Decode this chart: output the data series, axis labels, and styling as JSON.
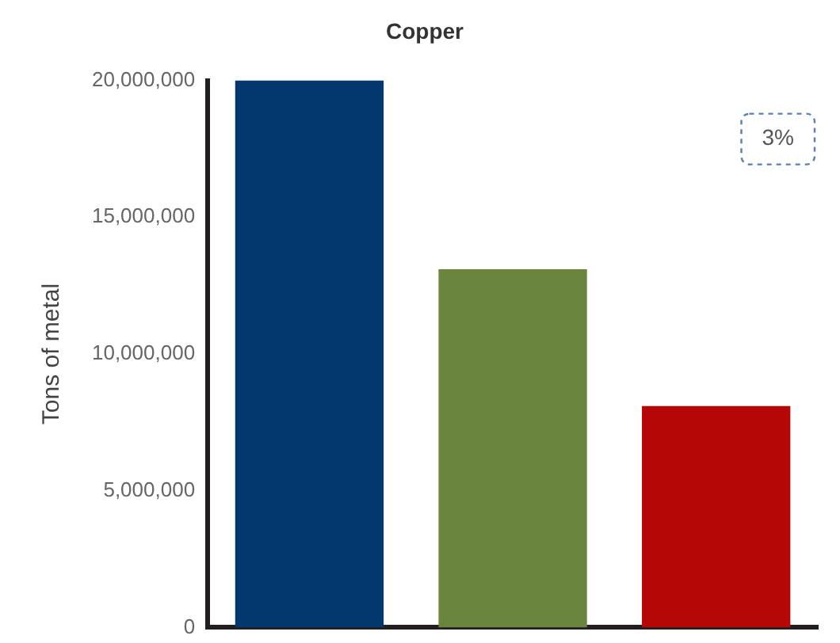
{
  "chart_data": {
    "type": "bar",
    "title": "Copper",
    "ylabel": "Tons of metal",
    "categories": [
      null,
      null,
      null
    ],
    "values": [
      20000000,
      13100000,
      8100000
    ],
    "colors": [
      "#02386e",
      "#6a853e",
      "#b50806"
    ],
    "ylim": [
      0,
      20000000
    ],
    "yticks": [
      0,
      {
        "value": 5000000,
        "label": "5,000,000"
      },
      {
        "value": 10000000,
        "label": "10,000,000"
      },
      {
        "value": 15000000,
        "label": "15,000,000"
      },
      {
        "value": 20000000,
        "label": "20,000,000"
      }
    ],
    "grid": false,
    "legend": false,
    "annotations": [
      "3%"
    ]
  }
}
